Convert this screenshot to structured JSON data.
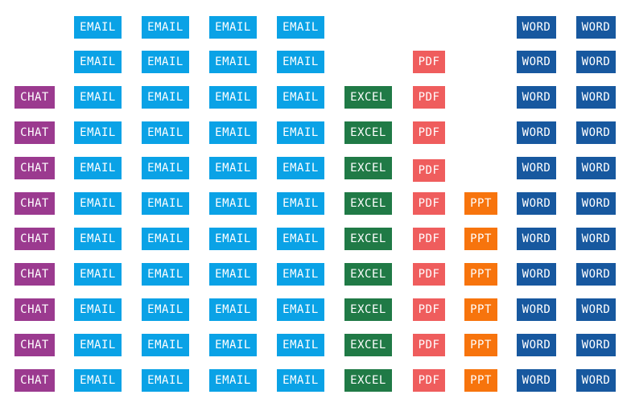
{
  "types": {
    "chat": {
      "label": "CHAT",
      "color": "#9b3a8f"
    },
    "email": {
      "label": "EMAIL",
      "color": "#0aa2e6"
    },
    "excel": {
      "label": "EXCEL",
      "color": "#207a46"
    },
    "pdf": {
      "label": "PDF",
      "color": "#ef5d5d"
    },
    "ppt": {
      "label": "PPT",
      "color": "#f7740d"
    },
    "word": {
      "label": "WORD",
      "color": "#17589f"
    }
  },
  "columns": [
    "chat",
    "email",
    "email",
    "email",
    "email",
    "excel",
    "pdf",
    "ppt",
    "word",
    "word"
  ],
  "rows": [
    [
      0,
      1,
      1,
      1,
      1,
      0,
      0,
      0,
      1,
      1
    ],
    [
      0,
      1,
      1,
      1,
      1,
      0,
      1,
      0,
      1,
      1
    ],
    [
      1,
      1,
      1,
      1,
      1,
      1,
      1,
      0,
      1,
      1
    ],
    [
      1,
      1,
      1,
      1,
      1,
      1,
      1,
      0,
      1,
      1
    ],
    [
      1,
      1,
      1,
      1,
      1,
      1,
      1,
      0,
      1,
      1
    ],
    [
      1,
      1,
      1,
      1,
      1,
      1,
      1,
      1,
      1,
      1
    ],
    [
      1,
      1,
      1,
      1,
      1,
      1,
      1,
      1,
      1,
      1
    ],
    [
      1,
      1,
      1,
      1,
      1,
      1,
      1,
      1,
      1,
      1
    ],
    [
      1,
      1,
      1,
      1,
      1,
      1,
      1,
      1,
      1,
      1
    ],
    [
      1,
      1,
      1,
      1,
      1,
      1,
      1,
      1,
      1,
      1
    ],
    [
      1,
      1,
      1,
      1,
      1,
      1,
      1,
      1,
      1,
      1
    ]
  ]
}
